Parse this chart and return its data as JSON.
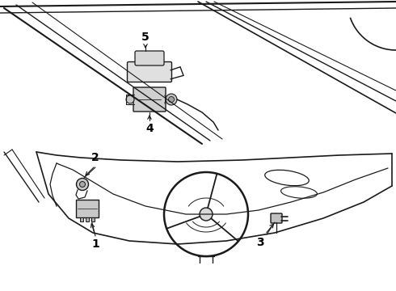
{
  "background_color": "#ffffff",
  "line_color": "#1a1a1a",
  "label_color": "#000000",
  "fig_width": 4.9,
  "fig_height": 3.6,
  "dpi": 100,
  "label_fontsize": 10,
  "label_fontweight": "bold",
  "top_panel": {
    "y_min": 1.82,
    "y_max": 3.6
  },
  "bottom_panel": {
    "y_min": 0.0,
    "y_max": 1.78
  }
}
